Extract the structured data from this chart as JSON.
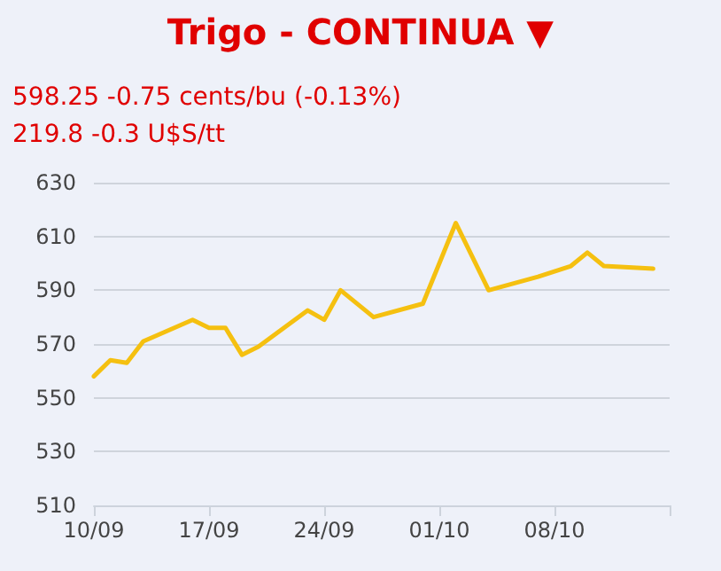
{
  "chart_data": {
    "type": "line",
    "title": "Trigo - CONTINUA ▼",
    "subtitle": "598.25 -0.75 cents/bu (-0.13%)",
    "annotations": [
      "219.8 -0.3 U$S/tt"
    ],
    "x": [
      "--09-10",
      "--09-11",
      "--09-12",
      "--09-13",
      "--09-16",
      "--09-17",
      "--09-18",
      "--09-19",
      "--09-20",
      "--09-23",
      "--09-24",
      "--09-25",
      "--09-27",
      "--09-30",
      "--10-02",
      "--10-04",
      "--10-07",
      "--10-09",
      "--10-10",
      "--10-11",
      "--10-14"
    ],
    "series": [
      {
        "color": "#f5c010",
        "values": [
          558,
          564,
          563,
          571,
          579,
          576,
          576,
          566,
          569,
          582.5,
          579,
          590,
          580,
          585,
          615,
          590,
          595,
          599,
          604,
          599,
          598
        ]
      }
    ],
    "xlim": [
      "--09-10",
      "--10-15"
    ],
    "xticks": [
      {
        "value": "--09-10",
        "label": "10/09"
      },
      {
        "value": "--09-17",
        "label": "17/09"
      },
      {
        "value": "--09-24",
        "label": "24/09"
      },
      {
        "value": "--10-01",
        "label": "01/10"
      },
      {
        "value": "--10-08",
        "label": "08/10"
      },
      {
        "value": "--10-15",
        "label": null
      }
    ],
    "ylim": [
      510,
      630
    ],
    "yticks": [
      510,
      530,
      550,
      570,
      590,
      610,
      630
    ],
    "grid": "y",
    "marker": "none",
    "line_style": "solid"
  }
}
